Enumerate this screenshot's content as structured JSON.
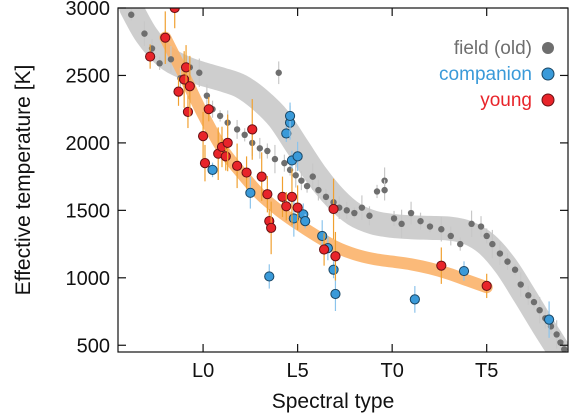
{
  "chart_data": {
    "type": "scatter",
    "title": "",
    "xlabel": "Spectral type",
    "ylabel": "Effective temperature [K]",
    "x_axis": {
      "scale": "spectral-type index (M0=0, L0=10, T0=20)",
      "range": [
        5.5,
        29.3
      ],
      "ticks": [
        {
          "value": 10,
          "label": "L0"
        },
        {
          "value": 15,
          "label": "L5"
        },
        {
          "value": 20,
          "label": "T0"
        },
        {
          "value": 25,
          "label": "T5"
        }
      ]
    },
    "y_axis": {
      "range": [
        450,
        3000
      ],
      "ticks": [
        {
          "value": 500,
          "label": "500"
        },
        {
          "value": 1000,
          "label": "1000"
        },
        {
          "value": 1500,
          "label": "1500"
        },
        {
          "value": 2000,
          "label": "2000"
        },
        {
          "value": 2500,
          "label": "2500"
        },
        {
          "value": 3000,
          "label": "3000"
        }
      ]
    },
    "grid": false,
    "legend": {
      "placement": "top-right",
      "entries": [
        {
          "label": "field (old)",
          "color": "#6e6e6e",
          "series": "field"
        },
        {
          "label": "companion",
          "color": "#3a9ad9",
          "series": "companion"
        },
        {
          "label": "young",
          "color": "#e8242a",
          "series": "young"
        }
      ]
    },
    "trend_lines": [
      {
        "series": "field",
        "color": "#c9c9c9",
        "x": [
          6.2,
          7,
          8,
          9,
          10,
          11,
          12,
          13,
          14,
          15,
          16,
          17,
          18,
          19,
          20,
          21,
          22,
          23,
          24,
          25,
          26,
          27,
          28,
          29
        ],
        "y": [
          3000,
          2800,
          2640,
          2560,
          2510,
          2470,
          2420,
          2320,
          2180,
          1970,
          1760,
          1590,
          1470,
          1410,
          1385,
          1375,
          1370,
          1365,
          1335,
          1250,
          1090,
          870,
          640,
          420
        ]
      },
      {
        "series": "young",
        "color": "#fbb26a",
        "x": [
          8,
          9,
          10,
          11,
          12,
          13,
          14,
          15,
          16,
          17,
          18,
          19,
          20,
          21,
          22,
          23,
          24,
          25
        ],
        "y": [
          2780,
          2500,
          2210,
          1960,
          1780,
          1620,
          1500,
          1400,
          1310,
          1230,
          1175,
          1140,
          1120,
          1100,
          1070,
          1030,
          980,
          930
        ]
      }
    ],
    "series": [
      {
        "name": "field (old)",
        "color": "#6e6e6e",
        "points": [
          {
            "x": 6.2,
            "y": 2950
          },
          {
            "x": 6.9,
            "y": 2810
          },
          {
            "x": 7.3,
            "y": 2700
          },
          {
            "x": 7.7,
            "y": 2590
          },
          {
            "x": 8.3,
            "y": 2620
          },
          {
            "x": 8.8,
            "y": 2480
          },
          {
            "x": 9.3,
            "y": 2560
          },
          {
            "x": 9.8,
            "y": 2520
          },
          {
            "x": 10.2,
            "y": 2350
          },
          {
            "x": 10.5,
            "y": 2250
          },
          {
            "x": 10.9,
            "y": 2200
          },
          {
            "x": 11.3,
            "y": 2150
          },
          {
            "x": 11.8,
            "y": 2100
          },
          {
            "x": 12.2,
            "y": 2060
          },
          {
            "x": 12.6,
            "y": 2000
          },
          {
            "x": 13.0,
            "y": 1960
          },
          {
            "x": 13.4,
            "y": 1940
          },
          {
            "x": 13.8,
            "y": 1880
          },
          {
            "x": 14.0,
            "y": 2520
          },
          {
            "x": 14.3,
            "y": 1850
          },
          {
            "x": 14.6,
            "y": 1800
          },
          {
            "x": 14.9,
            "y": 1760
          },
          {
            "x": 15.2,
            "y": 1720
          },
          {
            "x": 15.5,
            "y": 1680
          },
          {
            "x": 15.8,
            "y": 1750
          },
          {
            "x": 16.1,
            "y": 1650
          },
          {
            "x": 16.5,
            "y": 1600
          },
          {
            "x": 16.9,
            "y": 1560
          },
          {
            "x": 17.2,
            "y": 1520
          },
          {
            "x": 17.6,
            "y": 1500
          },
          {
            "x": 18.0,
            "y": 1480
          },
          {
            "x": 18.4,
            "y": 1520
          },
          {
            "x": 18.8,
            "y": 1460
          },
          {
            "x": 19.2,
            "y": 1640
          },
          {
            "x": 19.6,
            "y": 1720
          },
          {
            "x": 19.6,
            "y": 1650
          },
          {
            "x": 20.1,
            "y": 1440
          },
          {
            "x": 20.5,
            "y": 1400
          },
          {
            "x": 21.0,
            "y": 1480
          },
          {
            "x": 21.5,
            "y": 1420
          },
          {
            "x": 22.0,
            "y": 1380
          },
          {
            "x": 22.6,
            "y": 1360
          },
          {
            "x": 23.1,
            "y": 1310
          },
          {
            "x": 23.6,
            "y": 1250
          },
          {
            "x": 24.2,
            "y": 1400
          },
          {
            "x": 24.7,
            "y": 1380
          },
          {
            "x": 25.0,
            "y": 1310
          },
          {
            "x": 25.3,
            "y": 1250
          },
          {
            "x": 25.7,
            "y": 1180
          },
          {
            "x": 26.1,
            "y": 1120
          },
          {
            "x": 26.5,
            "y": 1060
          },
          {
            "x": 26.8,
            "y": 950
          },
          {
            "x": 27.2,
            "y": 870
          },
          {
            "x": 27.5,
            "y": 820
          },
          {
            "x": 27.8,
            "y": 760
          },
          {
            "x": 28.1,
            "y": 700
          },
          {
            "x": 28.4,
            "y": 640
          },
          {
            "x": 28.7,
            "y": 580
          },
          {
            "x": 28.9,
            "y": 520
          },
          {
            "x": 29.1,
            "y": 470
          }
        ]
      },
      {
        "name": "companion",
        "color": "#3a9ad9",
        "points": [
          {
            "x": 10.5,
            "y": 1800
          },
          {
            "x": 12.5,
            "y": 1630
          },
          {
            "x": 13.5,
            "y": 1010
          },
          {
            "x": 14.4,
            "y": 2070
          },
          {
            "x": 14.6,
            "y": 2150
          },
          {
            "x": 14.6,
            "y": 2200
          },
          {
            "x": 14.7,
            "y": 1870
          },
          {
            "x": 14.8,
            "y": 1440
          },
          {
            "x": 15.0,
            "y": 1900
          },
          {
            "x": 15.3,
            "y": 1470
          },
          {
            "x": 15.4,
            "y": 1420
          },
          {
            "x": 16.3,
            "y": 1310
          },
          {
            "x": 16.6,
            "y": 1220
          },
          {
            "x": 16.9,
            "y": 1060
          },
          {
            "x": 17.0,
            "y": 880
          },
          {
            "x": 21.2,
            "y": 840
          },
          {
            "x": 23.8,
            "y": 1050
          },
          {
            "x": 28.3,
            "y": 690
          }
        ]
      },
      {
        "name": "young",
        "color": "#e8242a",
        "points": [
          {
            "x": 7.2,
            "y": 2640
          },
          {
            "x": 8.0,
            "y": 2780
          },
          {
            "x": 8.5,
            "y": 3000
          },
          {
            "x": 8.7,
            "y": 2380
          },
          {
            "x": 9.0,
            "y": 2470
          },
          {
            "x": 9.1,
            "y": 2560
          },
          {
            "x": 9.2,
            "y": 2230
          },
          {
            "x": 9.3,
            "y": 2420
          },
          {
            "x": 10.0,
            "y": 2050
          },
          {
            "x": 10.1,
            "y": 1850
          },
          {
            "x": 10.3,
            "y": 2250
          },
          {
            "x": 10.8,
            "y": 1920
          },
          {
            "x": 11.0,
            "y": 1970
          },
          {
            "x": 11.2,
            "y": 1900
          },
          {
            "x": 11.3,
            "y": 2000
          },
          {
            "x": 11.8,
            "y": 1830
          },
          {
            "x": 12.3,
            "y": 1780
          },
          {
            "x": 12.6,
            "y": 2100
          },
          {
            "x": 13.1,
            "y": 1750
          },
          {
            "x": 13.4,
            "y": 1620
          },
          {
            "x": 13.5,
            "y": 1420
          },
          {
            "x": 13.6,
            "y": 1370
          },
          {
            "x": 14.2,
            "y": 1600
          },
          {
            "x": 14.4,
            "y": 1530
          },
          {
            "x": 14.7,
            "y": 1600
          },
          {
            "x": 15.0,
            "y": 1520
          },
          {
            "x": 16.4,
            "y": 1210
          },
          {
            "x": 16.9,
            "y": 1510
          },
          {
            "x": 17.0,
            "y": 1160
          },
          {
            "x": 22.6,
            "y": 1090
          },
          {
            "x": 25.0,
            "y": 940
          }
        ]
      }
    ]
  }
}
